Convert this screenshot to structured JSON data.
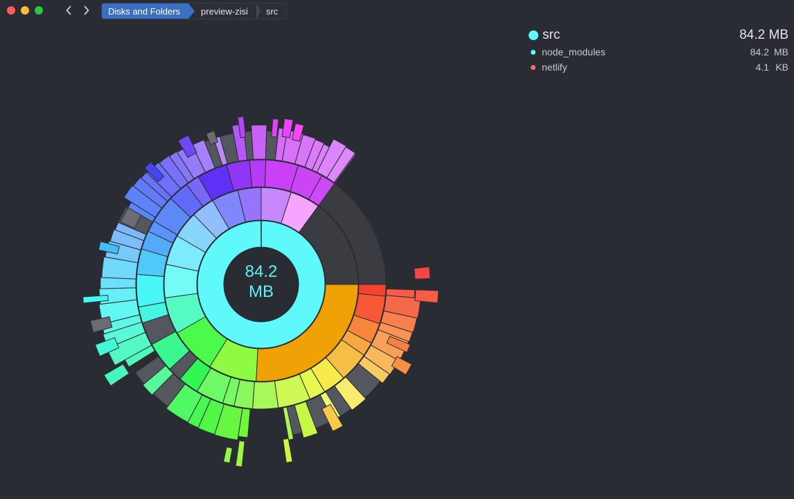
{
  "window": {
    "breadcrumb": [
      "Disks and Folders",
      "preview-zisi",
      "src"
    ]
  },
  "legend": {
    "title": "src",
    "title_size": "84.2 MB",
    "title_color": "#5ff9fb",
    "items": [
      {
        "name": "node_modules",
        "num": "84.2",
        "unit": "MB",
        "color": "#5ff9fb"
      },
      {
        "name": "netlify",
        "num": "4.1",
        "unit": "KB",
        "color": "#fa6b62"
      }
    ]
  },
  "center": {
    "value": "84.2",
    "unit": "MB"
  },
  "icons": {
    "back": "chevron-left-icon",
    "forward": "chevron-right-icon"
  },
  "colors": {
    "background": "#2a2c33",
    "accent": "#3a6fc4",
    "center_ring": "#5ff9fb",
    "unknown_segment": "#3b3c42"
  }
}
